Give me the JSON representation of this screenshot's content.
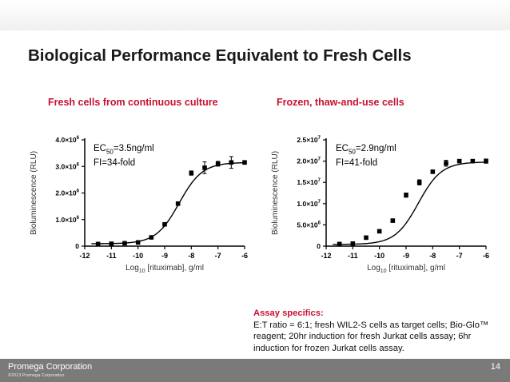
{
  "slide": {
    "title": "Biological Performance Equivalent to Fresh Cells",
    "company": "Promega Corporation",
    "copyright": "©2013 Promega Corporation",
    "page_number": "14"
  },
  "colors": {
    "accent_red": "#c8102e",
    "footer_gray": "#7a7a7a",
    "curve_black": "#000000"
  },
  "assay": {
    "title": "Assay specifics:",
    "text": "E:T ratio = 6:1; fresh WIL2-S cells as target cells; Bio-Glo™ reagent; 20hr induction for fresh Jurkat cells assay; 6hr induction for frozen Jurkat cells assay."
  },
  "chart_data": [
    {
      "type": "scatter",
      "panel_title": "Fresh cells from continuous culture",
      "annotation": {
        "ec50_prefix": "EC",
        "ec50_sub": "50",
        "ec50_value": "=3.5ng/ml",
        "fi": "FI=34-fold"
      },
      "ylabel": "Bioluminescence (RLU)",
      "xlabel": {
        "prefix": "Log",
        "sub": "10",
        "suffix": " [rituximab], g/ml"
      },
      "xlim": [
        -12,
        -6
      ],
      "ylim": [
        0,
        4000000
      ],
      "xticks": [
        -12,
        -11,
        -10,
        -9,
        -8,
        -7,
        -6
      ],
      "yticks": [
        {
          "value": 0,
          "mant": "0",
          "exp": ""
        },
        {
          "value": 1000000,
          "mant": "1.0×10",
          "exp": "6"
        },
        {
          "value": 2000000,
          "mant": "2.0×10",
          "exp": "6"
        },
        {
          "value": 3000000,
          "mant": "3.0×10",
          "exp": "6"
        },
        {
          "value": 4000000,
          "mant": "4.0×10",
          "exp": "6"
        }
      ],
      "x": [
        -11.5,
        -11,
        -10.5,
        -10,
        -9.5,
        -9,
        -8.5,
        -8,
        -7.5,
        -7,
        -6.5,
        -6
      ],
      "y": [
        80000,
        90000,
        110000,
        140000,
        330000,
        820000,
        1600000,
        2750000,
        2950000,
        3100000,
        3150000,
        3150000
      ],
      "err": [
        0,
        0,
        0,
        0,
        0,
        0,
        60000,
        80000,
        220000,
        90000,
        220000,
        70000
      ],
      "curve": {
        "bottom": 90000,
        "top": 3150000,
        "logec50": -8.456,
        "hill": 1.0
      }
    },
    {
      "type": "scatter",
      "panel_title": "Frozen, thaw-and-use cells",
      "annotation": {
        "ec50_prefix": "EC",
        "ec50_sub": "50",
        "ec50_value": "=2.9ng/ml",
        "fi": "FI=41-fold"
      },
      "ylabel": "Bioluminescence (RLU)",
      "xlabel": {
        "prefix": "Log",
        "sub": "10",
        "suffix": " [rituximab], g/ml"
      },
      "xlim": [
        -12,
        -6
      ],
      "ylim": [
        0,
        25000000
      ],
      "xticks": [
        -12,
        -11,
        -10,
        -9,
        -8,
        -7,
        -6
      ],
      "yticks": [
        {
          "value": 0,
          "mant": "0",
          "exp": ""
        },
        {
          "value": 5000000,
          "mant": "5.0×10",
          "exp": "6"
        },
        {
          "value": 10000000,
          "mant": "1.0×10",
          "exp": "7"
        },
        {
          "value": 15000000,
          "mant": "1.5×10",
          "exp": "7"
        },
        {
          "value": 20000000,
          "mant": "2.0×10",
          "exp": "7"
        },
        {
          "value": 25000000,
          "mant": "2.5×10",
          "exp": "7"
        }
      ],
      "x": [
        -11.5,
        -11,
        -10.5,
        -10,
        -9.5,
        -9,
        -8.5,
        -8,
        -7.5,
        -7,
        -6.5,
        -6
      ],
      "y": [
        500000,
        600000,
        2000000,
        3500000,
        6000000,
        12000000,
        15000000,
        17500000,
        19500000,
        20000000,
        20000000,
        20000000
      ],
      "err": [
        0,
        0,
        0,
        0,
        0,
        500000,
        600000,
        0,
        700000,
        0,
        0,
        500000
      ],
      "curve": {
        "bottom": 400000,
        "top": 19800000,
        "logec50": -8.54,
        "hill": 1.0
      }
    }
  ]
}
